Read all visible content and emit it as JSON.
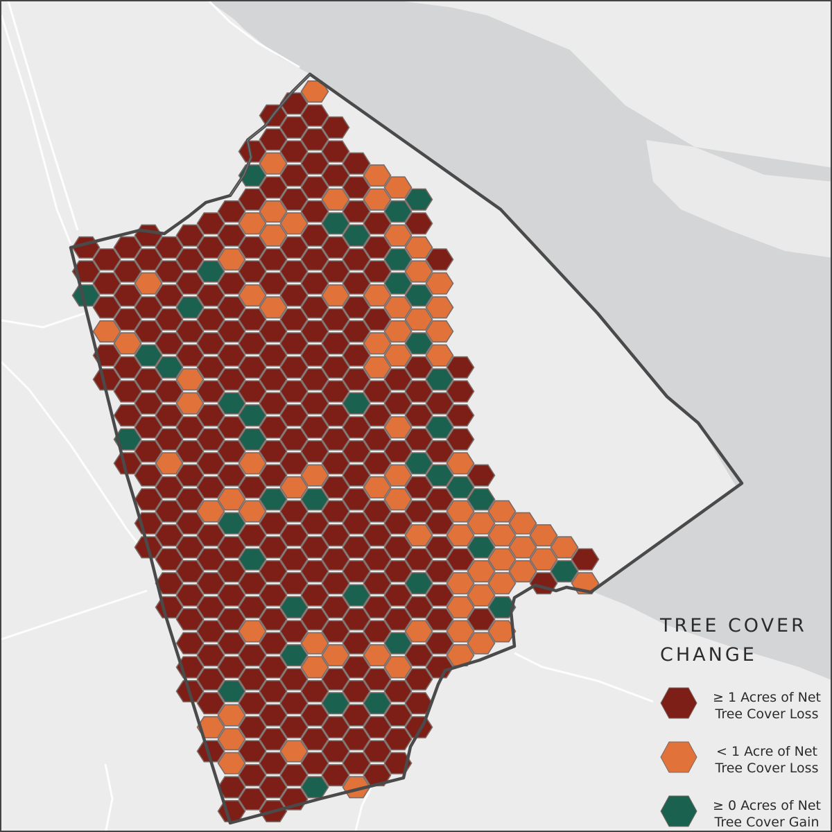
{
  "legend": {
    "title_line1": "TREE COVER",
    "title_line2": "CHANGE",
    "items": [
      {
        "line1": "≥ 1 Acres of Net",
        "line2": "Tree Cover Loss",
        "color": "#7d1f17"
      },
      {
        "line1": "< 1 Acre of Net",
        "line2": "Tree Cover Loss",
        "color": "#e0723a"
      },
      {
        "line1": "≥ 0 Acres of Net",
        "line2": "Tree Cover Gain",
        "color": "#1b6150"
      }
    ]
  },
  "colors": {
    "land": "#ececec",
    "water": "#d3d5d6",
    "boundary": "#4a4a4a",
    "hex_stroke": "#7a6a66"
  }
}
